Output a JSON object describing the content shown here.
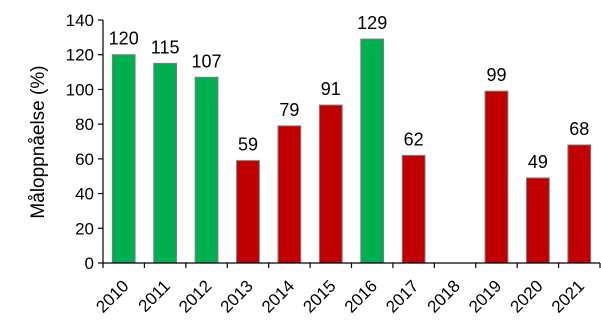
{
  "chart_data": {
    "type": "bar",
    "title": "",
    "xlabel": "",
    "ylabel": "Måloppnåelse (%)",
    "ylim": [
      0,
      140
    ],
    "yticks": [
      0,
      20,
      40,
      60,
      80,
      100,
      120,
      140
    ],
    "grid": false,
    "legend": "none",
    "categories": [
      "2010",
      "2011",
      "2012",
      "2013",
      "2014",
      "2015",
      "2016",
      "2017",
      "2018",
      "2019",
      "2020",
      "2021"
    ],
    "values": [
      120,
      115,
      107,
      59,
      79,
      91,
      129,
      62,
      null,
      99,
      49,
      68
    ],
    "data_labels": [
      "120",
      "115",
      "107",
      "59",
      "79",
      "91",
      "129",
      "62",
      "",
      "99",
      "49",
      "68"
    ],
    "bar_status": [
      "green",
      "green",
      "green",
      "red",
      "red",
      "red",
      "green",
      "red",
      "none",
      "red",
      "red",
      "red"
    ],
    "colors": {
      "green": "#00b050",
      "red": "#c00000",
      "bar_edge": "#7f7f7f",
      "axis": "#000000"
    }
  }
}
